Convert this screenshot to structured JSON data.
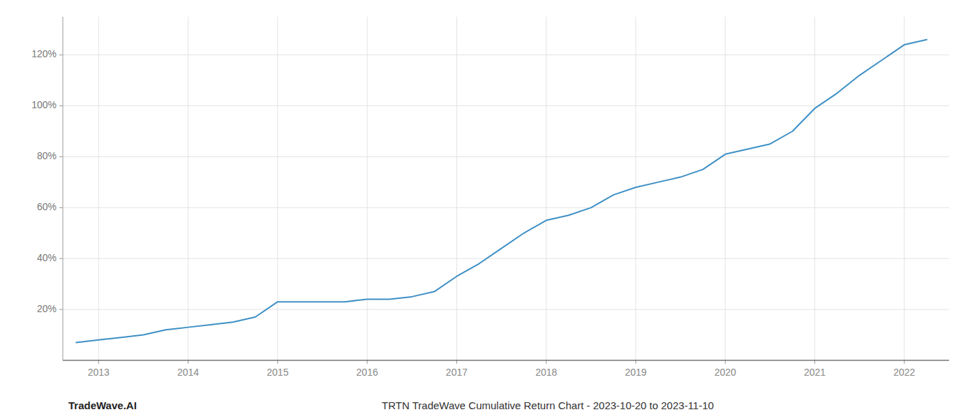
{
  "chart_data": {
    "type": "line",
    "title": "TRTN TradeWave Cumulative Return Chart - 2023-10-20 to 2023-11-10",
    "annotations": [
      "TradeWave.AI"
    ],
    "color": "#3d8fc5",
    "x": [
      2012.75,
      2013.0,
      2013.25,
      2013.5,
      2013.75,
      2014.0,
      2014.25,
      2014.5,
      2014.75,
      2015.0,
      2015.25,
      2015.5,
      2015.75,
      2016.0,
      2016.25,
      2016.5,
      2016.75,
      2017.0,
      2017.25,
      2017.5,
      2017.75,
      2018.0,
      2018.25,
      2018.5,
      2018.75,
      2019.0,
      2019.25,
      2019.5,
      2019.75,
      2020.0,
      2020.25,
      2020.5,
      2020.75,
      2021.0,
      2021.25,
      2021.5,
      2021.75,
      2022.0,
      2022.25
    ],
    "values": [
      7,
      8,
      9,
      10,
      12,
      13,
      14,
      15,
      17,
      23,
      23,
      23,
      23,
      24,
      24,
      25,
      27,
      33,
      38,
      44,
      50,
      55,
      57,
      60,
      65,
      68,
      70,
      72,
      75,
      81,
      83,
      85,
      90,
      99,
      105,
      112,
      118,
      124,
      126
    ],
    "xlim": [
      2012.6,
      2022.5
    ],
    "ylim": [
      0,
      135
    ],
    "xticks": [
      2013,
      2014,
      2015,
      2016,
      2017,
      2018,
      2019,
      2020,
      2021,
      2022
    ],
    "yticks": [
      {
        "value": 20,
        "label": "20%"
      },
      {
        "value": 40,
        "label": "40%"
      },
      {
        "value": 60,
        "label": "60%"
      },
      {
        "value": 80,
        "label": "80%"
      },
      {
        "value": 100,
        "label": "100%"
      },
      {
        "value": 120,
        "label": "120%"
      }
    ],
    "grid": true
  }
}
